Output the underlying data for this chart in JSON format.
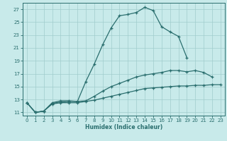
{
  "xlabel": "Humidex (Indice chaleur)",
  "bg_color": "#c8eaea",
  "line_color": "#2a6e6e",
  "grid_color": "#a0cccc",
  "xlim": [
    -0.5,
    23.5
  ],
  "ylim": [
    10.5,
    28.0
  ],
  "xticks": [
    0,
    1,
    2,
    3,
    4,
    5,
    6,
    7,
    8,
    9,
    10,
    11,
    12,
    13,
    14,
    15,
    16,
    17,
    18,
    19,
    20,
    21,
    22,
    23
  ],
  "yticks": [
    11,
    13,
    15,
    17,
    19,
    21,
    23,
    25,
    27
  ],
  "curve1_x": [
    0,
    1,
    2,
    3,
    4,
    5,
    6,
    7,
    8,
    9,
    10,
    11,
    12,
    13,
    14,
    15,
    16,
    17,
    18,
    19
  ],
  "curve1_y": [
    12.5,
    11.0,
    11.2,
    12.5,
    12.8,
    12.8,
    12.7,
    15.8,
    18.5,
    21.5,
    24.1,
    26.0,
    26.2,
    26.5,
    27.3,
    26.8,
    24.3,
    23.5,
    22.8,
    19.5
  ],
  "curve2_x": [
    0,
    1,
    2,
    3,
    4,
    5,
    6,
    7,
    8,
    9,
    10,
    11,
    12,
    13,
    14,
    15,
    16,
    17,
    18,
    19,
    20,
    21,
    22
  ],
  "curve2_y": [
    12.5,
    11.0,
    11.2,
    12.4,
    12.6,
    12.7,
    12.7,
    12.8,
    13.5,
    14.3,
    15.0,
    15.5,
    16.0,
    16.5,
    16.8,
    17.0,
    17.2,
    17.5,
    17.5,
    17.3,
    17.5,
    17.2,
    16.5
  ],
  "curve3_x": [
    0,
    1,
    2,
    3,
    4,
    5,
    6,
    7,
    8,
    9,
    10,
    11,
    12,
    13,
    14,
    15,
    16,
    17,
    18,
    19,
    20,
    21,
    22,
    23
  ],
  "curve3_y": [
    12.5,
    11.0,
    11.2,
    12.3,
    12.5,
    12.5,
    12.5,
    12.7,
    12.9,
    13.2,
    13.5,
    13.8,
    14.1,
    14.4,
    14.7,
    14.8,
    14.9,
    15.0,
    15.1,
    15.1,
    15.2,
    15.2,
    15.3,
    15.3
  ]
}
